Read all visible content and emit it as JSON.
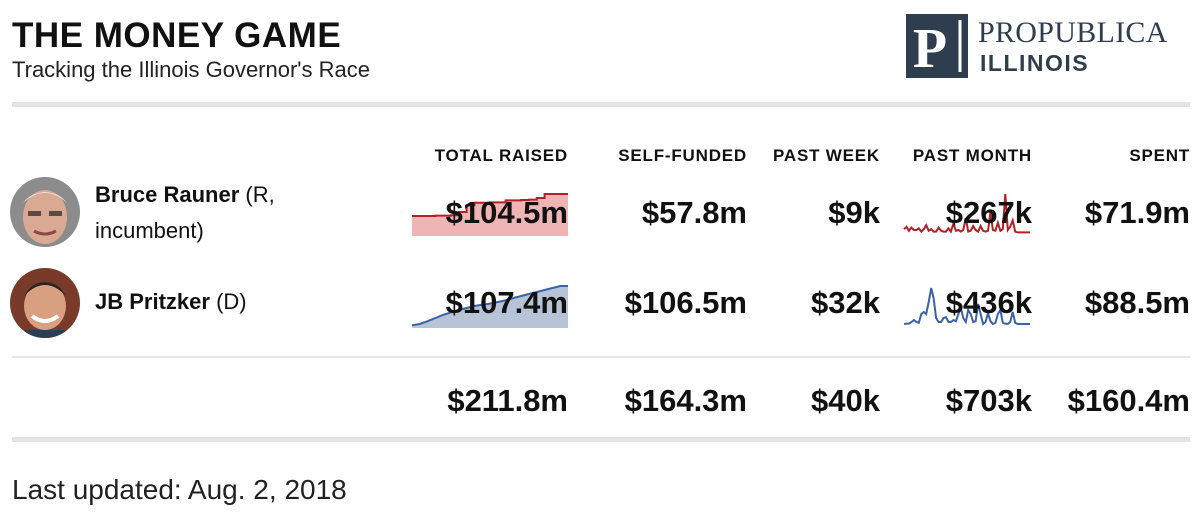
{
  "header": {
    "title": "THE MONEY GAME",
    "subtitle": "Tracking the Illinois Governor's Race"
  },
  "logo": {
    "line1": "PROPUBLICA",
    "line2": "ILLINOIS",
    "mark_letter": "P"
  },
  "colors": {
    "republican_line": "#b32025",
    "republican_fill": "#efb4b4",
    "democrat_line": "#3a63a6",
    "democrat_fill": "#b7c4d8",
    "logo": "#2f3e4e"
  },
  "chart_data": {
    "type": "table",
    "columns": [
      "TOTAL RAISED",
      "SELF-FUNDED",
      "PAST WEEK",
      "PAST MONTH",
      "SPENT"
    ],
    "rows": [
      {
        "name": "Bruce Rauner",
        "affiliation": "(R,",
        "affiliation_cont": "incumbent)",
        "party": "R",
        "total_raised": "$104.5m",
        "self_funded": "$57.8m",
        "past_week": "$9k",
        "past_month": "$267k",
        "spent": "$71.9m",
        "total_raised_trend": [
          0.45,
          0.45,
          0.45,
          0.46,
          0.46,
          0.47,
          0.55,
          0.72,
          0.78,
          0.78,
          0.79,
          0.79,
          0.84,
          0.84,
          0.85,
          0.86,
          0.9,
          1.0,
          1.0,
          1.0,
          1.0
        ],
        "past_month_trend": [
          0.12,
          0.18,
          0.08,
          0.16,
          0.1,
          0.1,
          0.14,
          0.06,
          0.12,
          0.22,
          0.08,
          0.12,
          0.06,
          0.06,
          0.16,
          0.08,
          0.06,
          0.06,
          0.14,
          0.06,
          0.26,
          0.08,
          0.1,
          0.06,
          0.1,
          0.4,
          0.06,
          0.08,
          0.2,
          0.1,
          0.06,
          0.2,
          0.08,
          0.06,
          0.08,
          0.55,
          0.1,
          0.08,
          0.28,
          0.08,
          0.12,
          1.0,
          0.1,
          0.18,
          0.34,
          0.06,
          0.04,
          0.04,
          0.04,
          0.04,
          0.04,
          0.04
        ]
      },
      {
        "name": "JB Pritzker",
        "affiliation": "(D)",
        "party": "D",
        "total_raised": "$107.4m",
        "self_funded": "$106.5m",
        "past_week": "$32k",
        "past_month": "$436k",
        "spent": "$88.5m",
        "total_raised_trend": [
          0.02,
          0.05,
          0.12,
          0.2,
          0.28,
          0.34,
          0.4,
          0.45,
          0.5,
          0.53,
          0.56,
          0.6,
          0.64,
          0.7,
          0.75,
          0.8,
          0.85,
          0.9,
          0.95,
          1.0,
          1.0
        ],
        "past_month_trend": [
          0.05,
          0.06,
          0.06,
          0.1,
          0.15,
          0.1,
          0.08,
          0.3,
          0.35,
          0.3,
          0.6,
          0.95,
          0.7,
          0.2,
          0.1,
          0.1,
          0.2,
          0.22,
          0.1,
          0.1,
          0.15,
          0.12,
          0.3,
          0.45,
          0.2,
          0.1,
          0.4,
          0.3,
          0.1,
          0.12,
          0.55,
          0.3,
          0.05,
          0.1,
          0.32,
          0.12,
          0.05,
          0.08,
          0.3,
          0.4,
          0.08,
          0.06,
          0.05,
          0.1,
          0.35,
          0.08,
          0.05,
          0.05,
          0.05,
          0.05,
          0.05,
          0.05
        ]
      }
    ],
    "totals": {
      "total_raised": "$211.8m",
      "self_funded": "$164.3m",
      "past_week": "$40k",
      "past_month": "$703k",
      "spent": "$160.4m"
    }
  },
  "footer": {
    "updated": "Last updated: Aug. 2, 2018"
  }
}
